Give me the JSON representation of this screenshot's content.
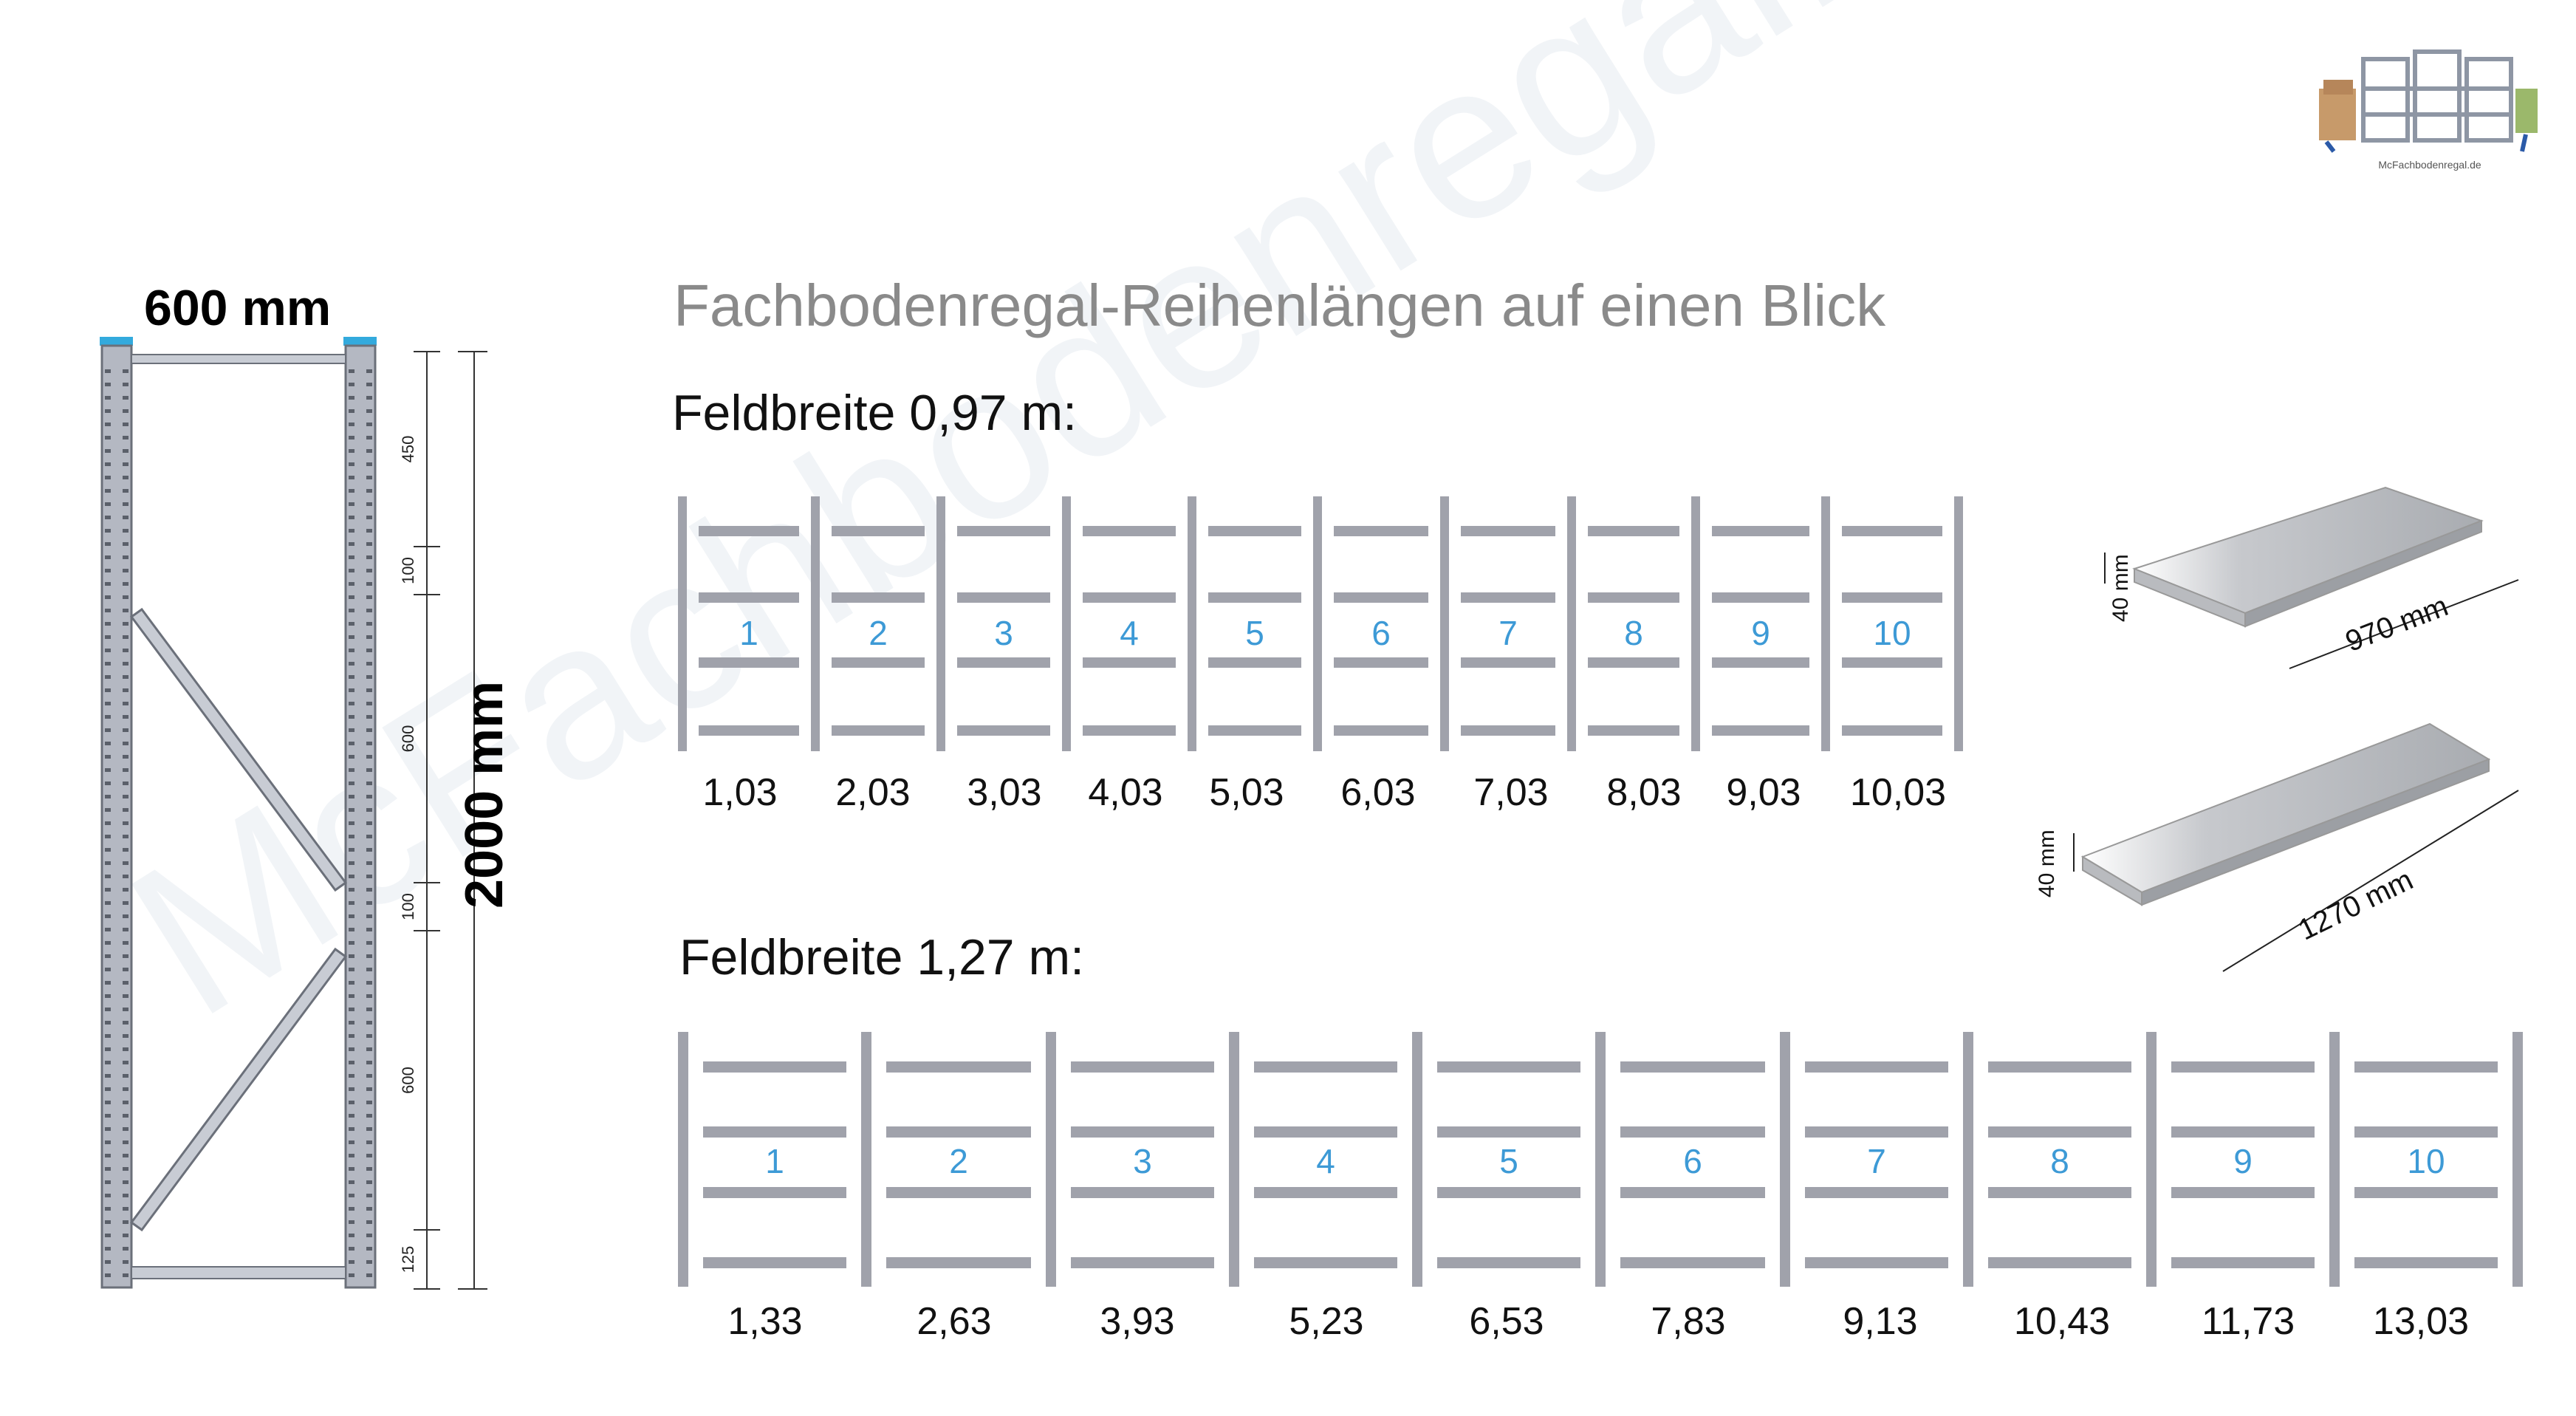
{
  "logo": {
    "caption": "McFachbodenregal.de"
  },
  "watermark": "McFachbodenregal.de",
  "title": "Fachbodenregal-Reihenlängen auf einen Blick",
  "frame": {
    "width_label": "600 mm",
    "height_label": "2000 mm",
    "dims": [
      "450",
      "100",
      "600",
      "100",
      "600",
      "125"
    ]
  },
  "rows": [
    {
      "heading": "Feldbreite 0,97 m:",
      "bays": [
        "1",
        "2",
        "3",
        "4",
        "5",
        "6",
        "7",
        "8",
        "9",
        "10"
      ],
      "lengths": [
        "1,03",
        "2,03",
        "3,03",
        "4,03",
        "5,03",
        "6,03",
        "7,03",
        "8,03",
        "9,03",
        "10,03"
      ]
    },
    {
      "heading": "Feldbreite 1,27 m:",
      "bays": [
        "1",
        "2",
        "3",
        "4",
        "5",
        "6",
        "7",
        "8",
        "9",
        "10"
      ],
      "lengths": [
        "1,33",
        "2,63",
        "3,93",
        "5,23",
        "6,53",
        "7,83",
        "9,13",
        "10,43",
        "11,73",
        "13,03"
      ]
    }
  ],
  "boards": [
    {
      "thickness": "40 mm",
      "length": "970 mm"
    },
    {
      "thickness": "40 mm",
      "length": "1270 mm"
    }
  ],
  "colors": {
    "upright": "#a0a2ab",
    "number": "#3d9ad6",
    "title": "#8a8a8a",
    "accent": "#33aadd"
  }
}
